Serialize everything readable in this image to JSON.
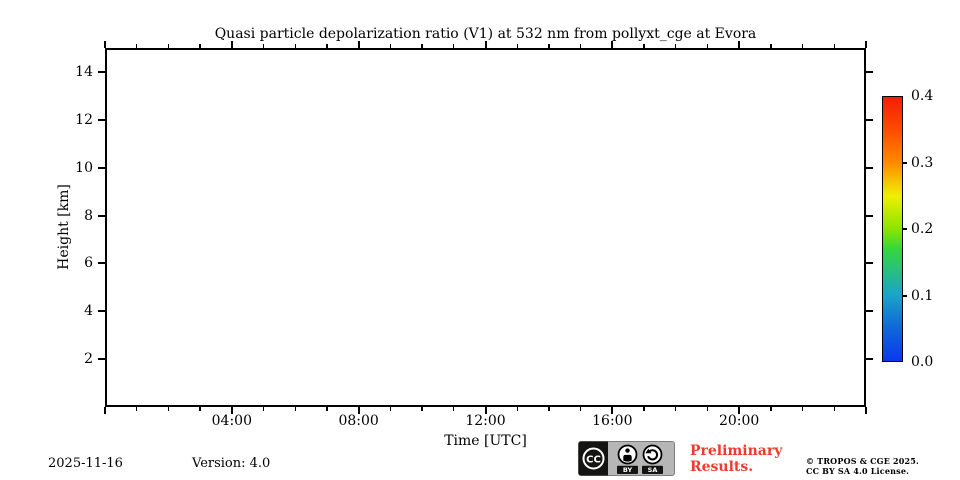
{
  "page": {
    "background": "#ffffff",
    "text_color": "#000000"
  },
  "chart_data": {
    "type": "heatmap",
    "title": "Quasi particle depolarization ratio (V1) at 532 nm from pollyxt_cge at Evora",
    "xlabel": "Time [UTC]",
    "ylabel": "Height [km]",
    "xlim_hours": [
      0,
      24
    ],
    "x_major_tick_hours": [
      0,
      4,
      8,
      12,
      16,
      20,
      24
    ],
    "x_minor_tick_step_hours": 1,
    "x_tick_labels": [
      {
        "hour": 4,
        "label": "04:00"
      },
      {
        "hour": 8,
        "label": "08:00"
      },
      {
        "hour": 12,
        "label": "12:00"
      },
      {
        "hour": 16,
        "label": "16:00"
      },
      {
        "hour": 20,
        "label": "20:00"
      }
    ],
    "ylim": [
      0,
      15
    ],
    "y_major_ticks": [
      2,
      4,
      6,
      8,
      10,
      12,
      14
    ],
    "grid": false,
    "plot_background": "#ffffff",
    "values": [],
    "colorbar": {
      "min": 0.0,
      "max": 0.4,
      "tick_values": [
        0.0,
        0.1,
        0.2,
        0.3,
        0.4
      ],
      "tick_labels": [
        "0.0",
        "0.1",
        "0.2",
        "0.3",
        "0.4"
      ],
      "labeled_dash_values": [
        0.1,
        0.2,
        0.3
      ],
      "gradient_stops": [
        {
          "value": 0.0,
          "color": "#0a38ee"
        },
        {
          "value": 0.05,
          "color": "#0f68d8"
        },
        {
          "value": 0.1,
          "color": "#1aa4ca"
        },
        {
          "value": 0.17,
          "color": "#35d73c"
        },
        {
          "value": 0.2,
          "color": "#8ce400"
        },
        {
          "value": 0.25,
          "color": "#eef000"
        },
        {
          "value": 0.3,
          "color": "#ff8b00"
        },
        {
          "value": 0.35,
          "color": "#fc4c00"
        },
        {
          "value": 0.4,
          "color": "#f61d05"
        }
      ]
    }
  },
  "footer": {
    "date": "2025-11-16",
    "version": "Version: 4.0",
    "license_badge": {
      "cc": "CC",
      "by": "BY",
      "sa": "SA"
    },
    "preliminary_line1": "Preliminary",
    "preliminary_line2": "Results.",
    "preliminary_color": "#f2392e",
    "copyright_line1": "© TROPOS & CGE 2025.",
    "copyright_line2": "CC BY SA 4.0 License."
  }
}
